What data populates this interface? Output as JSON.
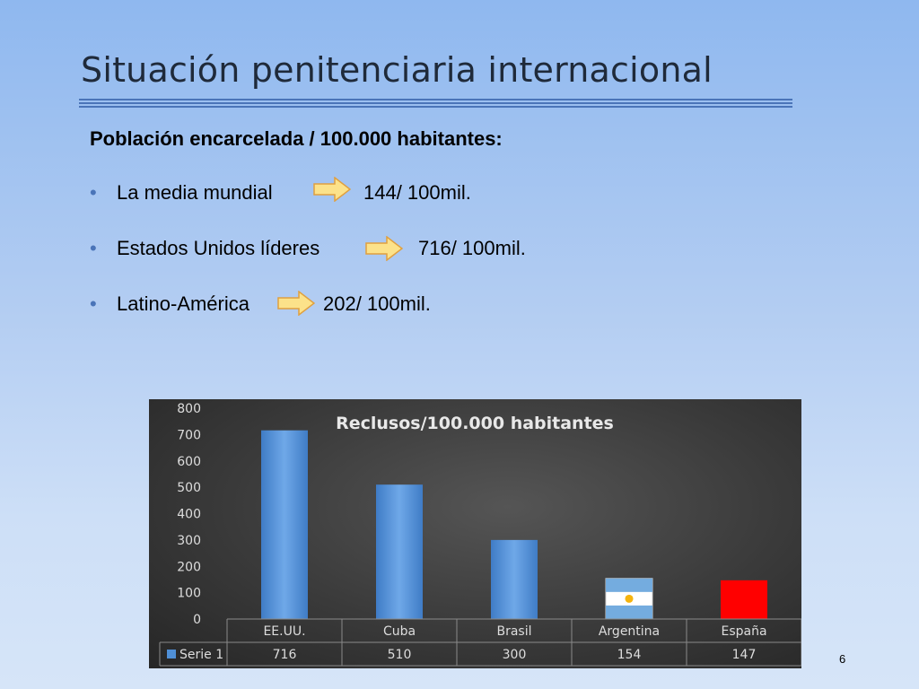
{
  "slide": {
    "title": "Situación penitenciaria internacional",
    "subheading": "Población encarcelada / 100.000 habitantes:",
    "page_number": "6",
    "bullets": [
      {
        "label": "La media mundial",
        "value": "144/ 100mil."
      },
      {
        "label": "Estados Unidos líderes",
        "value": "716/ 100mil."
      },
      {
        "label": "Latino-América",
        "value": "202/ 100mil."
      }
    ],
    "colors": {
      "accent": "#4a74b8",
      "arrow_fill": "#fce28a",
      "arrow_stroke": "#e0a040"
    }
  },
  "chart_data": {
    "type": "bar",
    "title": "Reclusos/100.000 habitantes",
    "categories": [
      "EE.UU.",
      "Cuba",
      "Brasil",
      "Argentina",
      "España"
    ],
    "series": [
      {
        "name": "Serie 1",
        "values": [
          716,
          510,
          300,
          154,
          147
        ]
      }
    ],
    "table_values": [
      "716",
      "510",
      "300",
      "154",
      "147"
    ],
    "yticks": [
      "800",
      "700",
      "600",
      "500",
      "400",
      "300",
      "200",
      "100",
      "0"
    ],
    "ylim": [
      0,
      800
    ],
    "bar_colors": [
      "#4f8fd6",
      "#4f8fd6",
      "#4f8fd6",
      "flag-argentina",
      "#ff0000"
    ],
    "legend_placement": "data-table",
    "grid": false
  }
}
